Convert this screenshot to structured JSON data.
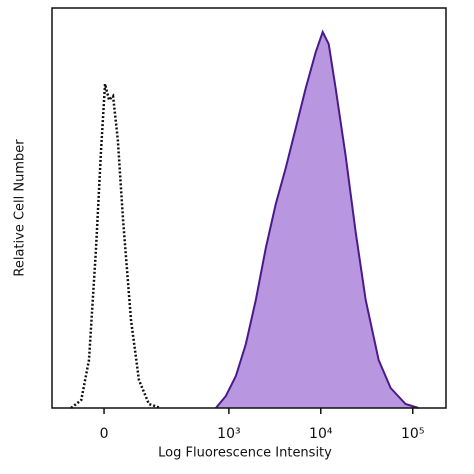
{
  "chart_data": {
    "type": "histogram-overlay",
    "xlabel": "Log Fluorescence Intensity",
    "ylabel": "Relative Cell Number",
    "xscale": "biexponential",
    "xlim": [
      -150,
      230000
    ],
    "ylim": [
      0,
      100
    ],
    "xticks": [
      0,
      {
        "value": 1000,
        "label": "10³"
      },
      {
        "value": 10000,
        "label": "10⁴"
      },
      {
        "value": 100000,
        "label": "10⁵"
      }
    ],
    "series": [
      {
        "color": "#111111",
        "style": "dotted",
        "fill": "none",
        "x": [
          -81,
          -53,
          -34,
          -18,
          -6.6,
          2.2,
          11,
          20,
          31,
          43.5,
          64,
          87,
          121,
          170
        ],
        "values": [
          0,
          2,
          12,
          39.5,
          64.5,
          81,
          77,
          78,
          67,
          47,
          22,
          7,
          1,
          0
        ]
      },
      {
        "color": "#4b1a8a",
        "style": "solid",
        "fill": "#b897e0",
        "x": [
          721,
          927,
          1192,
          1531,
          1965,
          2525,
          3240,
          4160,
          5350,
          6870,
          8820,
          10500,
          12200,
          14500,
          18650,
          23950,
          30800,
          42600,
          57500,
          83600,
          115500
        ],
        "values": [
          0,
          3,
          8,
          16,
          27,
          40,
          51,
          60,
          70,
          80,
          89,
          94,
          91,
          80,
          63,
          44,
          27,
          12,
          5,
          1,
          0
        ]
      }
    ]
  }
}
